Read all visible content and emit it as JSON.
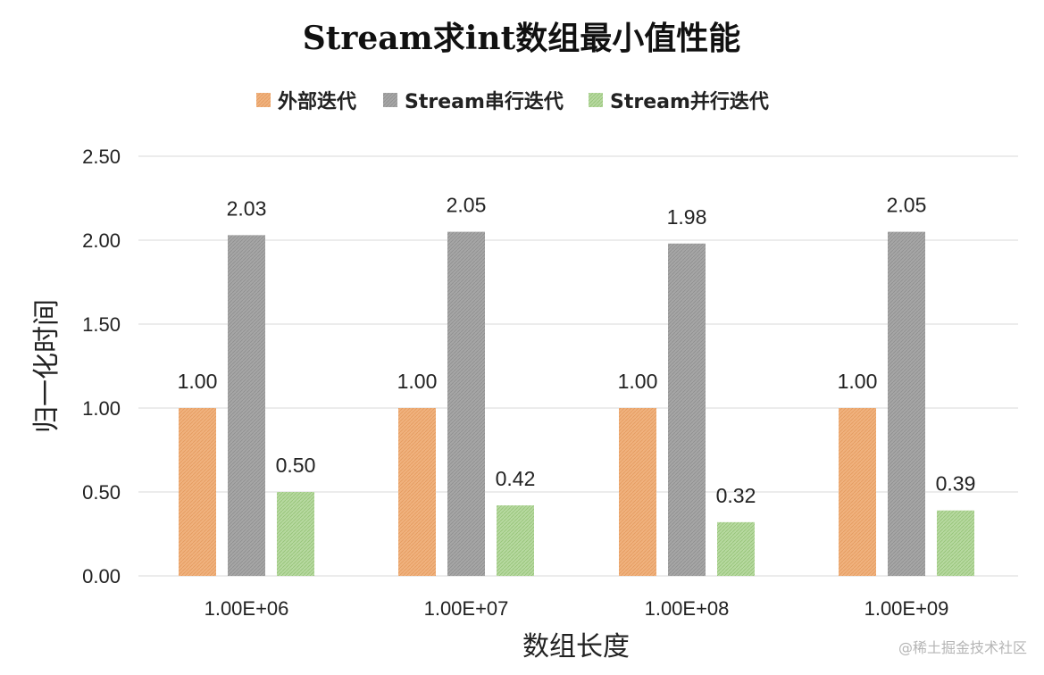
{
  "chart_data": {
    "type": "bar",
    "title": "Stream求int数组最小值性能",
    "xlabel": "数组长度",
    "ylabel": "归一化时间",
    "categories": [
      "1.00E+06",
      "1.00E+07",
      "1.00E+08",
      "1.00E+09"
    ],
    "series": [
      {
        "name": "外部迭代",
        "values": [
          1.0,
          1.0,
          1.0,
          1.0
        ],
        "color": "#f0b27e",
        "labels": [
          "1.00",
          "1.00",
          "1.00",
          "1.00"
        ]
      },
      {
        "name": "Stream串行迭代",
        "values": [
          2.03,
          2.05,
          1.98,
          2.05
        ],
        "color": "#a6a6a6",
        "labels": [
          "2.03",
          "2.05",
          "1.98",
          "2.05"
        ]
      },
      {
        "name": "Stream并行迭代",
        "values": [
          0.5,
          0.42,
          0.32,
          0.39
        ],
        "color": "#a9d18e",
        "labels": [
          "0.50",
          "0.42",
          "0.32",
          "0.39"
        ]
      }
    ],
    "ylim": [
      0,
      2.5
    ],
    "yticks": [
      "0.00",
      "0.50",
      "1.00",
      "1.50",
      "2.00",
      "2.50"
    ],
    "grid": true,
    "legend_position": "top"
  },
  "watermark": "@稀土掘金技术社区"
}
